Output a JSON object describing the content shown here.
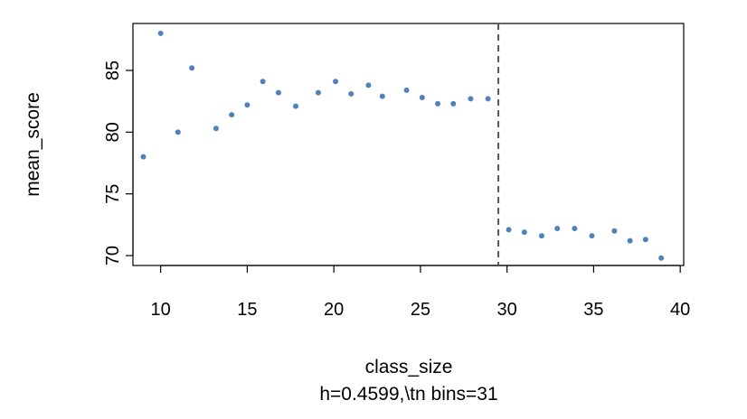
{
  "chart_data": {
    "type": "scatter",
    "xlabel": "class_size",
    "ylabel": "mean_score",
    "subtitle": "h=0.4599,\\tn bins=31",
    "xlim": [
      8.4,
      40.2
    ],
    "ylim": [
      69.2,
      88.8
    ],
    "xticks": [
      10,
      15,
      20,
      25,
      30,
      35,
      40
    ],
    "yticks": [
      70,
      75,
      80,
      85
    ],
    "cutoff": 29.5,
    "point_color": "#4f81bd",
    "cutoff_color": "#555555",
    "x": [
      9,
      10,
      11,
      11.8,
      13.2,
      14.1,
      15,
      15.9,
      16.8,
      17.8,
      19.1,
      20.1,
      21,
      22,
      22.8,
      24.2,
      25.1,
      26,
      26.9,
      27.9,
      28.9,
      30.1,
      31,
      32,
      32.9,
      33.9,
      34.9,
      36.2,
      37.1,
      38,
      38.9
    ],
    "y": [
      78.0,
      88.0,
      80.0,
      85.2,
      80.3,
      81.4,
      82.2,
      84.1,
      83.2,
      82.1,
      83.2,
      84.1,
      83.1,
      83.8,
      82.9,
      83.4,
      82.8,
      82.3,
      82.3,
      82.7,
      82.7,
      72.1,
      71.9,
      71.6,
      72.2,
      72.2,
      71.6,
      72.0,
      71.2,
      71.3,
      69.8
    ]
  }
}
